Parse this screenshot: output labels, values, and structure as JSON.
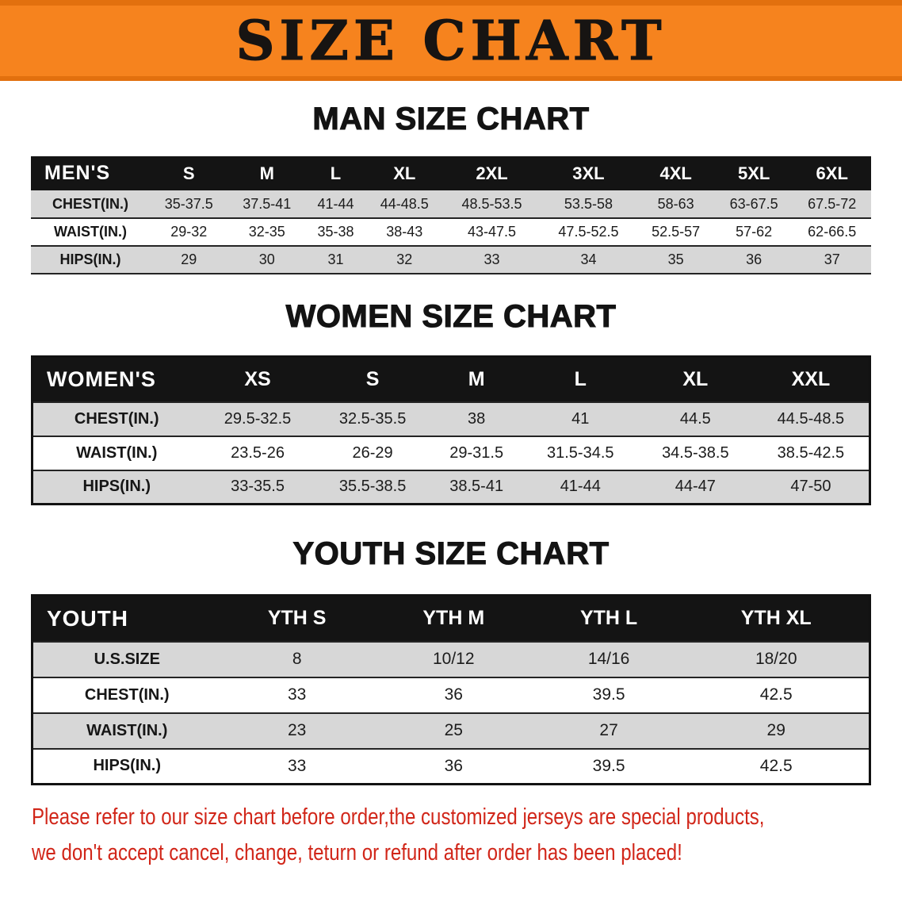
{
  "banner": {
    "title": "SIZE CHART"
  },
  "colors": {
    "banner_bg": "#f6831e",
    "banner_edge": "#e2700e",
    "table_header_bg": "#141414",
    "stripe_gray": "#d7d7d7",
    "note_red": "#d12619",
    "text_black": "#131313"
  },
  "men": {
    "heading": "MAN SIZE CHART",
    "corner": "MEN'S",
    "sizes": [
      "S",
      "M",
      "L",
      "XL",
      "2XL",
      "3XL",
      "4XL",
      "5XL",
      "6XL"
    ],
    "rows": [
      {
        "label": "CHEST(IN.)",
        "values": [
          "35-37.5",
          "37.5-41",
          "41-44",
          "44-48.5",
          "48.5-53.5",
          "53.5-58",
          "58-63",
          "63-67.5",
          "67.5-72"
        ]
      },
      {
        "label": "WAIST(IN.)",
        "values": [
          "29-32",
          "32-35",
          "35-38",
          "38-43",
          "43-47.5",
          "47.5-52.5",
          "52.5-57",
          "57-62",
          "62-66.5"
        ]
      },
      {
        "label": "HIPS(IN.)",
        "values": [
          "29",
          "30",
          "31",
          "32",
          "33",
          "34",
          "35",
          "36",
          "37"
        ]
      }
    ]
  },
  "women": {
    "heading": "WOMEN SIZE CHART",
    "corner": "WOMEN'S",
    "sizes": [
      "XS",
      "S",
      "M",
      "L",
      "XL",
      "XXL"
    ],
    "rows": [
      {
        "label": "CHEST(IN.)",
        "values": [
          "29.5-32.5",
          "32.5-35.5",
          "38",
          "41",
          "44.5",
          "44.5-48.5"
        ]
      },
      {
        "label": "WAIST(IN.)",
        "values": [
          "23.5-26",
          "26-29",
          "29-31.5",
          "31.5-34.5",
          "34.5-38.5",
          "38.5-42.5"
        ]
      },
      {
        "label": "HIPS(IN.)",
        "values": [
          "33-35.5",
          "35.5-38.5",
          "38.5-41",
          "41-44",
          "44-47",
          "47-50"
        ]
      }
    ]
  },
  "youth": {
    "heading": "YOUTH SIZE CHART",
    "corner": "YOUTH",
    "sizes": [
      "YTH S",
      "YTH M",
      "YTH L",
      "YTH XL"
    ],
    "rows": [
      {
        "label": "U.S.SIZE",
        "values": [
          "8",
          "10/12",
          "14/16",
          "18/20"
        ]
      },
      {
        "label": "CHEST(IN.)",
        "values": [
          "33",
          "36",
          "39.5",
          "42.5"
        ]
      },
      {
        "label": "WAIST(IN.)",
        "values": [
          "23",
          "25",
          "27",
          "29"
        ]
      },
      {
        "label": "HIPS(IN.)",
        "values": [
          "33",
          "36",
          "39.5",
          "42.5"
        ]
      }
    ]
  },
  "note": {
    "line1": "Please refer to our size chart before order,the customized jerseys are special products,",
    "line2": "we don't accept cancel, change, teturn or refund after order has been placed!"
  }
}
